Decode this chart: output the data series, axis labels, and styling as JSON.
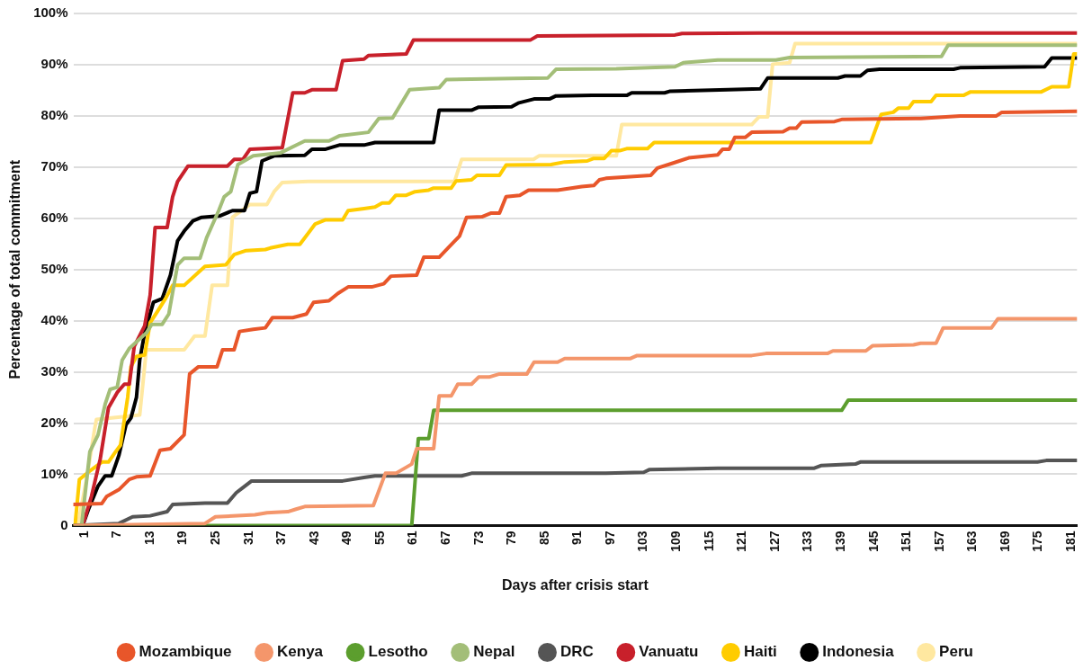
{
  "chart_data": {
    "type": "line",
    "xlabel": "Days after crisis start",
    "ylabel": "Percentage of total commitment",
    "xlim": [
      -1,
      182
    ],
    "xticks": [
      1,
      7,
      13,
      19,
      25,
      31,
      37,
      43,
      49,
      55,
      61,
      67,
      73,
      79,
      85,
      91,
      97,
      103,
      109,
      115,
      121,
      127,
      133,
      139,
      145,
      151,
      157,
      163,
      169,
      175,
      181
    ],
    "ylim": [
      0,
      100
    ],
    "yticks": [
      0,
      {
        "value": 10,
        "label": "10%"
      },
      {
        "value": 20,
        "label": "20%"
      },
      {
        "value": 30,
        "label": "30%"
      },
      {
        "value": 40,
        "label": "40%"
      },
      {
        "value": 50,
        "label": "50%"
      },
      {
        "value": 60,
        "label": "60%"
      },
      {
        "value": 70,
        "label": "70%"
      },
      {
        "value": 80,
        "label": "80%"
      },
      {
        "value": 90,
        "label": "90%"
      },
      {
        "value": 100,
        "label": "100%"
      }
    ],
    "grid": "y",
    "legend": "bottom",
    "marker": "none",
    "line_style": "solid",
    "series": [
      {
        "name": "Mozambique",
        "color": "#e8562a",
        "x": [
          -1,
          4.2,
          5.1,
          7.3,
          9.2,
          10.5,
          13,
          14.8,
          16.7,
          19.2,
          20.2,
          21.8,
          25.2,
          26.2,
          28.3,
          29.3,
          31.8,
          34,
          35.3,
          39,
          41.5,
          42.8,
          45.6,
          47.2,
          49.1,
          53.4,
          55.6,
          56.9,
          61.6,
          62.9,
          65.7,
          67.3,
          69.4,
          70.7,
          73.5,
          75.1,
          76.7,
          77.9,
          80.4,
          82,
          87.3,
          91.7,
          93.9,
          94.9,
          96.1,
          104.3,
          105.5,
          108.4,
          111.2,
          116.5,
          117.4,
          118.6,
          119.6,
          121.5,
          122.7,
          128.4,
          129.6,
          130.8,
          131.8,
          137.8,
          139.1,
          153.5,
          160.7,
          167.3,
          168.3,
          182
        ],
        "values": [
          4.1,
          4.3,
          5.7,
          7,
          9,
          9.5,
          9.7,
          14.7,
          15,
          17.7,
          29.6,
          31,
          31,
          34.3,
          34.3,
          37.9,
          38.3,
          38.6,
          40.6,
          40.6,
          41.3,
          43.6,
          43.9,
          45.3,
          46.6,
          46.6,
          47.2,
          48.7,
          48.9,
          52.4,
          52.4,
          54.2,
          56.5,
          60.2,
          60.3,
          61,
          61,
          64.2,
          64.5,
          65.5,
          65.5,
          66.2,
          66.4,
          67.5,
          67.8,
          68.4,
          69.8,
          70.8,
          71.8,
          72.4,
          73.5,
          73.5,
          75.8,
          75.8,
          76.8,
          76.9,
          77.6,
          77.6,
          78.8,
          78.9,
          79.3,
          79.5,
          80,
          80,
          80.7,
          80.9
        ]
      },
      {
        "name": "Kenya",
        "color": "#f4966b",
        "x": [
          -1,
          23,
          24.9,
          32.1,
          34.3,
          38.1,
          39.6,
          41.2,
          53.7,
          55.9,
          57.8,
          60.7,
          61.6,
          64.7,
          65.7,
          67.9,
          69.1,
          71.6,
          72.9,
          74.8,
          76.7,
          81.7,
          83,
          87.3,
          88.6,
          100.5,
          101.8,
          122.7,
          125.3,
          136.5,
          137.5,
          143.5,
          144.7,
          152.2,
          153.5,
          156.3,
          157.6,
          166.4,
          167.6,
          182
        ],
        "values": [
          0,
          0.4,
          1.7,
          2.1,
          2.5,
          2.7,
          3.2,
          3.7,
          3.9,
          10.2,
          10.2,
          12,
          15,
          15,
          25.3,
          25.3,
          27.6,
          27.6,
          29,
          29,
          29.6,
          29.6,
          31.9,
          31.9,
          32.6,
          32.6,
          33.2,
          33.2,
          33.6,
          33.6,
          34.1,
          34.1,
          35.1,
          35.3,
          35.6,
          35.6,
          38.6,
          38.6,
          40.4,
          40.4
        ]
      },
      {
        "name": "Lesotho",
        "color": "#5c9e2e",
        "x": [
          -1,
          60.7,
          61.9,
          63.8,
          64.7,
          139.1,
          140.3,
          182
        ],
        "values": [
          0,
          0,
          17,
          17,
          22.5,
          22.5,
          24.5,
          24.5
        ]
      },
      {
        "name": "Nepal",
        "color": "#a3be78",
        "x": [
          0.5,
          2,
          3.5,
          4.8,
          5.7,
          7,
          7.9,
          9.2,
          12.3,
          13.3,
          15.2,
          16.4,
          18,
          19.2,
          22.1,
          23.3,
          25.5,
          26.5,
          27.7,
          29,
          31.8,
          36.8,
          41.2,
          45.6,
          47.5,
          52.8,
          54.7,
          57.2,
          60.3,
          65.7,
          67,
          79.2,
          85.5,
          87,
          98,
          108.7,
          110.3,
          116.5,
          127.1,
          129.6,
          157.3,
          158.5,
          182
        ],
        "values": [
          0,
          14.4,
          17.7,
          23.7,
          26.6,
          27,
          32.3,
          34.6,
          37.6,
          39.3,
          39.3,
          41.3,
          50.9,
          52.2,
          52.2,
          56.2,
          61.5,
          64.2,
          65.2,
          70.5,
          72.2,
          72.8,
          75.1,
          75.1,
          76.1,
          76.8,
          79.5,
          79.6,
          85.1,
          85.5,
          87.1,
          87.3,
          87.4,
          89.1,
          89.2,
          89.6,
          90.4,
          90.9,
          90.9,
          91.4,
          91.6,
          93.8,
          93.8
        ]
      },
      {
        "name": "DRC",
        "color": "#555555",
        "x": [
          -1,
          7.3,
          9.8,
          13,
          16.1,
          17.1,
          23,
          27.1,
          28.7,
          29.9,
          31.5,
          48.1,
          52,
          54,
          69.8,
          71.6,
          96.1,
          103,
          104,
          116.5,
          134.1,
          135.3,
          141.6,
          142.5,
          174.8,
          176.4,
          182
        ],
        "values": [
          0,
          0.4,
          1.7,
          1.9,
          2.7,
          4.1,
          4.4,
          4.4,
          6.4,
          7.4,
          8.7,
          8.7,
          9.4,
          9.7,
          9.7,
          10.2,
          10.2,
          10.4,
          10.9,
          11.2,
          11.2,
          11.7,
          12,
          12.4,
          12.4,
          12.7,
          12.7
        ]
      },
      {
        "name": "Vanuatu",
        "color": "#c8202b",
        "x": [
          0.7,
          2.3,
          3.9,
          5.4,
          7,
          8.3,
          9.2,
          10.1,
          12,
          13,
          13.9,
          16.1,
          17.1,
          18,
          19.9,
          27.1,
          28.3,
          29.9,
          31.2,
          37.1,
          39,
          41.2,
          42.5,
          46.9,
          48.1,
          52,
          52.8,
          59.7,
          61,
          82.3,
          83.6,
          108.7,
          110,
          124,
          182
        ],
        "values": [
          0,
          5.7,
          13,
          23,
          26,
          27.6,
          27.6,
          35,
          39,
          45,
          58.2,
          58.2,
          64.2,
          67.2,
          70.2,
          70.2,
          71.5,
          71.5,
          73.5,
          73.8,
          84.5,
          84.5,
          85.1,
          85.1,
          90.8,
          91.1,
          91.8,
          92.1,
          94.8,
          94.8,
          95.6,
          95.8,
          96.1,
          96.2,
          96.2
        ]
      },
      {
        "name": "Haiti",
        "color": "#ffcc00",
        "x": [
          -0.7,
          0.1,
          1.7,
          4.2,
          5.4,
          6.7,
          7.6,
          8.9,
          9.5,
          10.5,
          12,
          13,
          14.2,
          15.8,
          17.1,
          19.2,
          23,
          26.8,
          28.3,
          30.5,
          34,
          34.9,
          38.1,
          40.3,
          43.1,
          45,
          48.1,
          49.1,
          52,
          54,
          55.3,
          56.6,
          57.8,
          59.7,
          61.3,
          63.8,
          64.7,
          67.9,
          68.8,
          71.6,
          72.6,
          76.7,
          77.9,
          86.1,
          88.6,
          92.7,
          93.9,
          95.8,
          97.1,
          98.6,
          99.9,
          103.7,
          104.9,
          144.4,
          146.3,
          148.5,
          149.4,
          151.3,
          152.2,
          155.4,
          156.3,
          161.3,
          162.6,
          175.5,
          177.4,
          180.5,
          181.4,
          182
        ],
        "values": [
          0,
          9,
          10.4,
          12.4,
          12.4,
          14.4,
          15.7,
          25,
          31,
          33,
          33.3,
          39.6,
          41.6,
          44.3,
          46.9,
          46.9,
          50.6,
          50.9,
          52.9,
          53.7,
          53.9,
          54.2,
          54.9,
          54.9,
          58.9,
          59.7,
          59.7,
          61.5,
          61.9,
          62.2,
          63,
          63,
          64.5,
          64.5,
          65.2,
          65.5,
          65.9,
          65.9,
          67.3,
          67.5,
          68.4,
          68.4,
          70.4,
          70.5,
          71,
          71.2,
          71.7,
          71.7,
          73.2,
          73.2,
          73.6,
          73.6,
          74.8,
          74.8,
          80.3,
          80.7,
          81.5,
          81.5,
          82.8,
          82.8,
          84,
          84,
          84.7,
          84.7,
          85.7,
          85.7,
          92.1,
          92.1
        ]
      },
      {
        "name": "Indonesia",
        "color": "#000000",
        "x": [
          0.7,
          1.7,
          3.5,
          4.8,
          6,
          7.3,
          8.6,
          9.5,
          10.5,
          11.1,
          12,
          13.6,
          15.2,
          16.7,
          18,
          19.2,
          20.8,
          22.4,
          25.8,
          28,
          30.2,
          31.2,
          32.4,
          33.4,
          35.6,
          41.2,
          42.5,
          45,
          47.5,
          52,
          54,
          64.7,
          65.7,
          71.6,
          72.9,
          78.9,
          80.1,
          83,
          85.8,
          87,
          93.6,
          99.9,
          100.8,
          106.8,
          107.7,
          118.4,
          124.3,
          125.6,
          138.4,
          139.7,
          142.5,
          143.8,
          146,
          159.5,
          160.7,
          176.1,
          177.4,
          182
        ],
        "values": [
          0,
          3,
          7.7,
          9.7,
          9.7,
          13.7,
          19.7,
          21,
          25,
          32.3,
          37.6,
          43.6,
          44.3,
          48.9,
          55.6,
          57.5,
          59.5,
          60.2,
          60.5,
          61.5,
          61.5,
          64.9,
          65.2,
          71.2,
          72.2,
          72.3,
          73.5,
          73.5,
          74.3,
          74.3,
          74.8,
          74.8,
          81.1,
          81.1,
          81.7,
          81.8,
          82.5,
          83.3,
          83.3,
          83.9,
          84,
          84,
          84.5,
          84.5,
          84.8,
          85.1,
          85.3,
          87.4,
          87.4,
          87.8,
          87.8,
          88.9,
          89.1,
          89.1,
          89.4,
          89.6,
          91.3,
          91.3
        ]
      },
      {
        "name": "Peru",
        "color": "#ffe8a0",
        "x": [
          -0.2,
          1.4,
          2.9,
          3.2,
          11.1,
          12.3,
          19.2,
          21.1,
          23,
          24.3,
          27.1,
          28,
          31.2,
          34.3,
          35.6,
          37.1,
          41.8,
          68.5,
          69.8,
          82.9,
          83.9,
          98,
          99,
          122.7,
          124,
          125.6,
          126.5,
          129.6,
          130.6,
          182
        ],
        "values": [
          0,
          9,
          19,
          20.7,
          21.6,
          34.3,
          34.3,
          37,
          37,
          46.9,
          46.9,
          60.2,
          62.7,
          62.7,
          65.2,
          67,
          67.2,
          67.2,
          71.5,
          71.5,
          72.2,
          72.2,
          78.3,
          78.3,
          79.8,
          79.8,
          90.1,
          90.4,
          94.1,
          94.1
        ]
      }
    ]
  }
}
